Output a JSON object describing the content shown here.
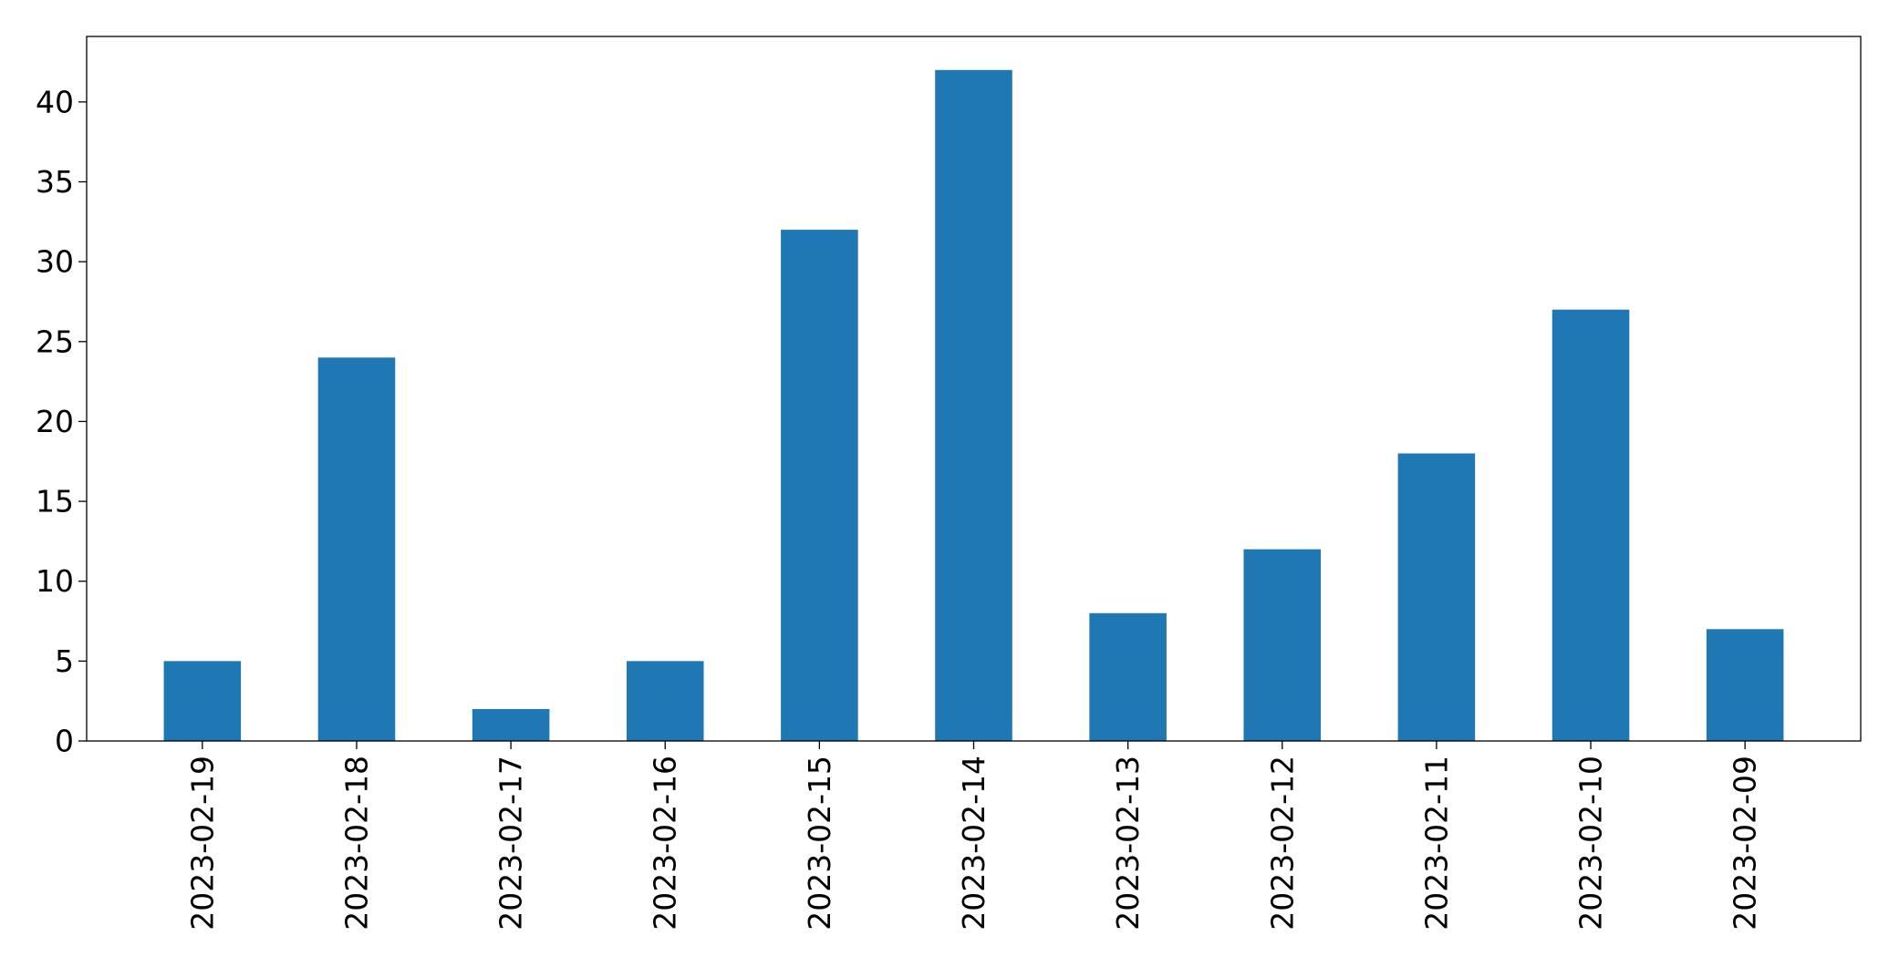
{
  "chart_data": {
    "type": "bar",
    "title": "",
    "xlabel": "",
    "ylabel": "",
    "categories": [
      "2023-02-19",
      "2023-02-18",
      "2023-02-17",
      "2023-02-16",
      "2023-02-15",
      "2023-02-14",
      "2023-02-13",
      "2023-02-12",
      "2023-02-11",
      "2023-02-10",
      "2023-02-09"
    ],
    "series": [
      {
        "values": [
          5,
          24,
          2,
          5,
          32,
          42,
          8,
          12,
          18,
          27,
          7
        ]
      }
    ],
    "ylim": [
      0,
      44.1
    ],
    "yticks": [
      0,
      5,
      10,
      15,
      20,
      25,
      30,
      35,
      40
    ],
    "bar_color": "#1f77b4",
    "grid": false,
    "legend": "none"
  }
}
